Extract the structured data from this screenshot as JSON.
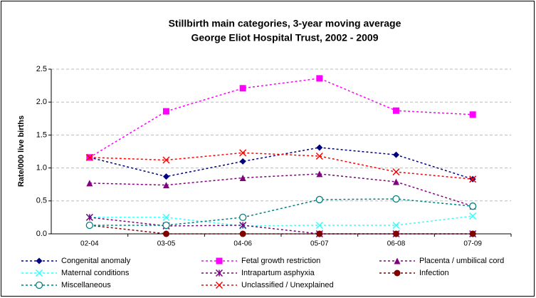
{
  "chart_data": {
    "type": "line",
    "title": "Stillbirth main categories, 3-year moving average",
    "subtitle": "George Eliot Hospital Trust, 2002 - 2009",
    "y_label": "Rate/000 live births",
    "categories": [
      "02-04",
      "03-05",
      "04-06",
      "05-07",
      "06-08",
      "07-09"
    ],
    "ylim": [
      0,
      2.5
    ],
    "yticks": [
      {
        "value": 0,
        "label": "0.0"
      },
      0.5,
      {
        "value": 1,
        "label": "1.0"
      },
      1.5,
      {
        "value": 2,
        "label": "2.0"
      },
      2.5
    ],
    "grid": true,
    "legend": "bottom",
    "series": [
      {
        "name": "Congenital anomaly",
        "color": "#000080",
        "marker": "diamond",
        "values": [
          1.16,
          0.87,
          1.1,
          1.31,
          1.2,
          0.83
        ]
      },
      {
        "name": "Fetal growth restriction",
        "color": "#FF00FF",
        "marker": "square",
        "values": [
          1.16,
          1.86,
          2.21,
          2.36,
          1.87,
          1.81
        ]
      },
      {
        "name": "Placenta / umbilical cord",
        "color": "#800080",
        "marker": "triangle",
        "values": [
          0.77,
          0.74,
          0.85,
          0.91,
          0.79,
          0.42
        ]
      },
      {
        "name": "Maternal conditions",
        "color": "#33FFFF",
        "marker": "x",
        "values": [
          0.25,
          0.25,
          0.12,
          0.13,
          0.13,
          0.27
        ]
      },
      {
        "name": "Intrapartum asphyxia",
        "color": "#800080",
        "marker": "star",
        "values": [
          0.25,
          0.12,
          0.13,
          0,
          0,
          0
        ]
      },
      {
        "name": "Infection",
        "color": "#800000",
        "marker": "circle",
        "values": [
          0.13,
          0,
          0,
          0,
          0,
          0
        ]
      },
      {
        "name": "Miscellaneous",
        "color": "#008080",
        "marker": "open-circle",
        "values": [
          0.13,
          0.13,
          0.25,
          0.52,
          0.53,
          0.42
        ]
      },
      {
        "name": "Unclassified / Unexplained",
        "color": "#FF0000",
        "marker": "x",
        "values": [
          1.16,
          1.12,
          1.23,
          1.18,
          0.94,
          0.83
        ]
      }
    ]
  }
}
